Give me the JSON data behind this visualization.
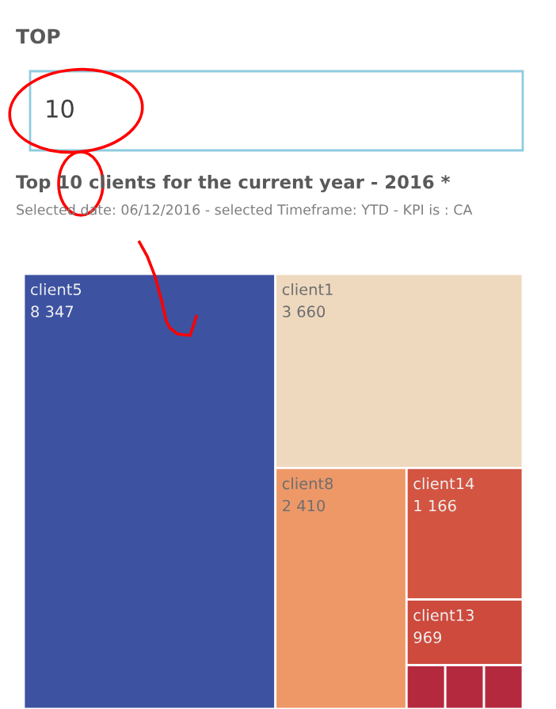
{
  "chart_data": {
    "type": "other",
    "title": "Top 10 clients for the current year - 2016 *",
    "subtitle": "Selected date: 06/12/2016 - selected Timeframe: YTD - KPI is : CA",
    "annotations": [
      "TOP",
      "10"
    ],
    "categories": [
      "client5",
      "client1",
      "client8",
      "client14",
      "client13",
      null,
      null,
      null
    ],
    "values": [
      8347,
      3660,
      2410,
      1166,
      969,
      null,
      null,
      null
    ],
    "value_labels": [
      "8 347",
      "3 660",
      "2 410",
      "1 166",
      "969",
      null,
      null,
      null
    ],
    "colors": [
      "#3d52a1",
      "#eed9bf",
      "#ee9868",
      "#d35441",
      "#cd4a3d",
      "#b5293f",
      "#b5293f",
      "#b5293f"
    ]
  }
}
